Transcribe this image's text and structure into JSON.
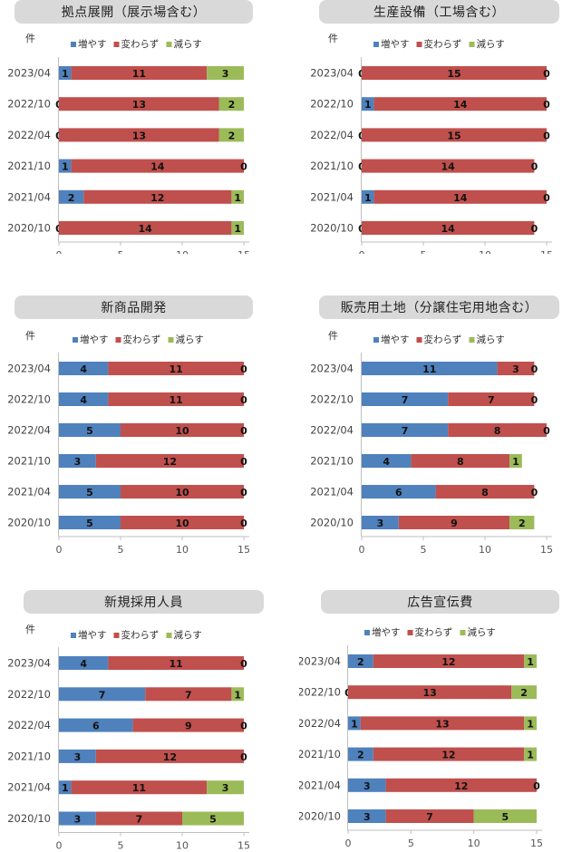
{
  "legend": {
    "inc": "増やす",
    "same": "変わらず",
    "dec": "減らす"
  },
  "colors": {
    "inc": "#4f81bd",
    "same": "#c0504d",
    "dec": "#9bbb59"
  },
  "chart_data": [
    {
      "type": "bar",
      "orientation": "horizontal",
      "stacked": true,
      "title": "拠点展開（展示場含む）",
      "unit": "件",
      "categories": [
        "2023/04",
        "2022/10",
        "2022/04",
        "2021/10",
        "2021/04",
        "2020/10"
      ],
      "series": [
        {
          "name": "増やす",
          "values": [
            1,
            0,
            0,
            1,
            2,
            0
          ]
        },
        {
          "name": "変わらず",
          "values": [
            11,
            13,
            13,
            14,
            12,
            14
          ]
        },
        {
          "name": "減らす",
          "values": [
            3,
            2,
            2,
            0,
            1,
            1
          ]
        }
      ],
      "xlim": [
        0,
        15
      ],
      "xticks": [
        0,
        5,
        10,
        15
      ],
      "show_unit": true
    },
    {
      "type": "bar",
      "orientation": "horizontal",
      "stacked": true,
      "title": "生産設備（工場含む）",
      "unit": "件",
      "categories": [
        "2023/04",
        "2022/10",
        "2022/04",
        "2021/10",
        "2021/04",
        "2020/10"
      ],
      "series": [
        {
          "name": "増やす",
          "values": [
            0,
            1,
            0,
            0,
            1,
            0
          ]
        },
        {
          "name": "変わらず",
          "values": [
            15,
            14,
            15,
            14,
            14,
            14
          ]
        },
        {
          "name": "減らす",
          "values": [
            0,
            0,
            0,
            0,
            0,
            0
          ]
        }
      ],
      "xlim": [
        0,
        15
      ],
      "xticks": [
        0,
        5,
        10,
        15
      ],
      "show_unit": true
    },
    {
      "type": "bar",
      "orientation": "horizontal",
      "stacked": true,
      "title": "新商品開発",
      "unit": "件",
      "categories": [
        "2023/04",
        "2022/10",
        "2022/04",
        "2021/10",
        "2021/04",
        "2020/10"
      ],
      "series": [
        {
          "name": "増やす",
          "values": [
            4,
            4,
            5,
            3,
            5,
            5
          ]
        },
        {
          "name": "変わらず",
          "values": [
            11,
            11,
            10,
            12,
            10,
            10
          ]
        },
        {
          "name": "減らす",
          "values": [
            0,
            0,
            0,
            0,
            0,
            0
          ]
        }
      ],
      "xlim": [
        0,
        15
      ],
      "xticks": [
        0,
        5,
        10,
        15
      ],
      "show_unit": true
    },
    {
      "type": "bar",
      "orientation": "horizontal",
      "stacked": true,
      "title": "販売用土地（分譲住宅用地含む）",
      "unit": "件",
      "categories": [
        "2023/04",
        "2022/10",
        "2022/04",
        "2021/10",
        "2021/04",
        "2020/10"
      ],
      "series": [
        {
          "name": "増やす",
          "values": [
            11,
            7,
            7,
            4,
            6,
            3
          ]
        },
        {
          "name": "変わらず",
          "values": [
            3,
            7,
            8,
            8,
            8,
            9
          ]
        },
        {
          "name": "減らす",
          "values": [
            0,
            0,
            0,
            1,
            0,
            2
          ]
        }
      ],
      "xlim": [
        0,
        15
      ],
      "xticks": [
        0,
        5,
        10,
        15
      ],
      "show_unit": true
    },
    {
      "type": "bar",
      "orientation": "horizontal",
      "stacked": true,
      "title": "新規採用人員",
      "unit": "件",
      "categories": [
        "2023/04",
        "2022/10",
        "2022/04",
        "2021/10",
        "2021/04",
        "2020/10"
      ],
      "series": [
        {
          "name": "増やす",
          "values": [
            4,
            7,
            6,
            3,
            1,
            3
          ]
        },
        {
          "name": "変わらず",
          "values": [
            11,
            7,
            9,
            12,
            11,
            7
          ]
        },
        {
          "name": "減らす",
          "values": [
            0,
            1,
            0,
            0,
            3,
            5
          ]
        }
      ],
      "xlim": [
        0,
        15
      ],
      "xticks": [
        0,
        5,
        10,
        15
      ],
      "show_unit": true
    },
    {
      "type": "bar",
      "orientation": "horizontal",
      "stacked": true,
      "title": "広告宣伝費",
      "unit": "",
      "categories": [
        "2023/04",
        "2022/10",
        "2022/04",
        "2021/10",
        "2021/04",
        "2020/10"
      ],
      "series": [
        {
          "name": "増やす",
          "values": [
            2,
            0,
            1,
            2,
            3,
            3
          ]
        },
        {
          "name": "変わらず",
          "values": [
            12,
            13,
            13,
            12,
            12,
            7
          ]
        },
        {
          "name": "減らす",
          "values": [
            1,
            2,
            1,
            1,
            0,
            5
          ]
        }
      ],
      "xlim": [
        0,
        15
      ],
      "xticks": [
        0,
        5,
        10,
        15
      ],
      "show_unit": false
    }
  ]
}
